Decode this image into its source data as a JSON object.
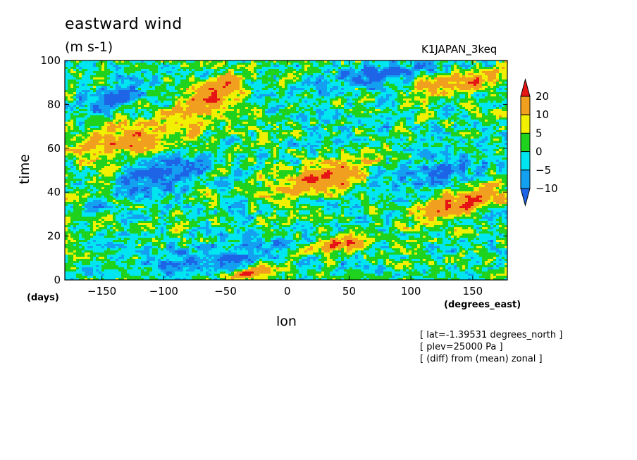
{
  "title": "eastward wind",
  "units": "(m s-1)",
  "run_label": "K1JAPAN_3keq",
  "notes": [
    "[ lat=-1.39531 degrees_north ]",
    "[ plev=25000 Pa ]",
    "[ (diff) from (mean) zonal ]"
  ],
  "chart_data": {
    "type": "heatmap",
    "xlabel": "lon",
    "xunits": "(degrees_east)",
    "ylabel": "time",
    "yunits": "(days)",
    "xlim": [
      -180,
      178
    ],
    "ylim": [
      0,
      100
    ],
    "xticks": [
      -150,
      -100,
      -50,
      0,
      50,
      100,
      150
    ],
    "yticks": [
      0,
      20,
      40,
      60,
      80,
      100
    ],
    "colorbar": {
      "levels": [
        -10,
        -5,
        0,
        5,
        10,
        20
      ],
      "level_labels": [
        "-10",
        "-5",
        "0",
        "5",
        "10",
        "20"
      ],
      "colors": [
        "#1e64e6",
        "#14a0f0",
        "#00e6f0",
        "#1ed21e",
        "#f0f000",
        "#f0a01e",
        "#e61414"
      ],
      "extend": "both"
    },
    "features": [
      {
        "lon_start": -180,
        "lon_end": -60,
        "time_start": 55,
        "time_end": 75,
        "sign": "positive",
        "peak": 15
      },
      {
        "lon_start": -90,
        "lon_end": -30,
        "time_start": 75,
        "time_end": 92,
        "sign": "positive",
        "peak": 20
      },
      {
        "lon_start": -10,
        "lon_end": 70,
        "time_start": 38,
        "time_end": 55,
        "sign": "positive",
        "peak": 22
      },
      {
        "lon_start": 10,
        "lon_end": 70,
        "time_start": 12,
        "time_end": 20,
        "sign": "positive",
        "peak": 22
      },
      {
        "lon_start": 100,
        "lon_end": 178,
        "time_start": 28,
        "time_end": 42,
        "sign": "positive",
        "peak": 22
      },
      {
        "lon_start": 100,
        "lon_end": 178,
        "time_start": 85,
        "time_end": 95,
        "sign": "positive",
        "peak": 18
      },
      {
        "lon_start": -50,
        "lon_end": -10,
        "time_start": 0,
        "time_end": 6,
        "sign": "positive",
        "peak": 22
      },
      {
        "lon_start": -170,
        "lon_end": -110,
        "time_start": 75,
        "time_end": 92,
        "sign": "negative",
        "peak": -12
      },
      {
        "lon_start": -140,
        "lon_end": -60,
        "time_start": 38,
        "time_end": 58,
        "sign": "negative",
        "peak": -12
      },
      {
        "lon_start": 30,
        "lon_end": 120,
        "time_start": 88,
        "time_end": 100,
        "sign": "negative",
        "peak": -12
      },
      {
        "lon_start": 60,
        "lon_end": 160,
        "time_start": 40,
        "time_end": 58,
        "sign": "negative",
        "peak": -10
      },
      {
        "lon_start": -120,
        "lon_end": 0,
        "time_start": 2,
        "time_end": 18,
        "sign": "negative",
        "peak": -10
      }
    ]
  }
}
